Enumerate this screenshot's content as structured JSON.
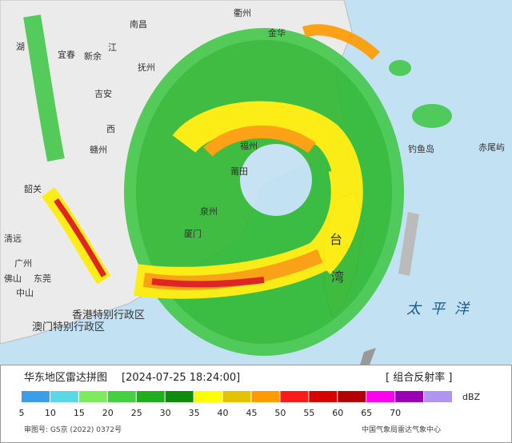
{
  "map_labels": [
    "南昌",
    "江",
    "西",
    "宜春",
    "新余",
    "抚州",
    "吉安",
    "赣州",
    "福州",
    "莆田",
    "泉州",
    "厦门",
    "台",
    "湾",
    "钓鱼岛",
    "赤尾屿",
    "太平洋",
    "香港特别行政区",
    "澳门特别行政区",
    "广州",
    "东莞",
    "佛山",
    "中山",
    "清远",
    "韶关",
    "湖",
    "衢州",
    "金华"
  ],
  "header": {
    "title": "华东地区雷达拼图",
    "time": "[2024-07-25 18:24:00]",
    "product": "[ 组合反射率 ]"
  },
  "legend": {
    "colors": [
      "#3c9ee8",
      "#5ad8e8",
      "#7cec5c",
      "#44d040",
      "#1eae1e",
      "#0e8c0e",
      "#ffff00",
      "#e4c400",
      "#ff9a00",
      "#ff1a1a",
      "#d80000",
      "#b40000",
      "#ff00f0",
      "#9a00b4",
      "#b096f0"
    ],
    "ticks": [
      "5",
      "10",
      "15",
      "20",
      "25",
      "30",
      "35",
      "40",
      "45",
      "50",
      "55",
      "60",
      "65",
      "70"
    ],
    "unit": "dBZ"
  },
  "footer": {
    "approval": "审图号: GS京 (2022) 0372号",
    "agency": "中国气象局雷达气象中心"
  }
}
